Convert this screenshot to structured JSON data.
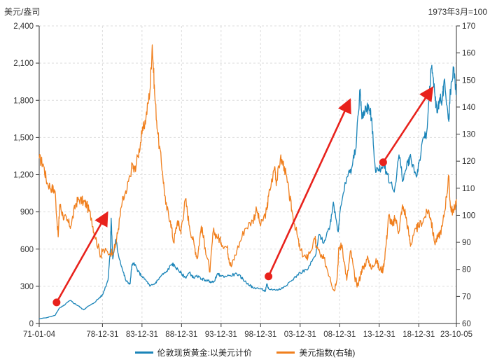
{
  "chart_data": {
    "type": "line",
    "title": "",
    "left_unit": "美元/盎司",
    "right_unit": "1973年3月=100",
    "x_tick_labels": [
      "71-01-04",
      "78-12-31",
      "83-12-31",
      "88-12-31",
      "93-12-31",
      "98-12-31",
      "03-12-31",
      "08-12-31",
      "13-12-31",
      "18-12-31",
      "23-10-05"
    ],
    "x_tick_years": [
      1971.0,
      1979.0,
      1984.0,
      1989.0,
      1994.0,
      1999.0,
      2004.0,
      2009.0,
      2014.0,
      2019.0,
      2023.76
    ],
    "x_range": [
      1971.0,
      2023.76
    ],
    "y_left": {
      "range": [
        0,
        2400
      ],
      "ticks": [
        "0",
        "300",
        "600",
        "900",
        "1,200",
        "1,500",
        "1,800",
        "2,100",
        "2,400"
      ],
      "tick_values": [
        0,
        300,
        600,
        900,
        1200,
        1500,
        1800,
        2100,
        2400
      ]
    },
    "y_right": {
      "range": [
        60,
        170
      ],
      "ticks": [
        "60",
        "70",
        "80",
        "90",
        "100",
        "110",
        "120",
        "130",
        "140",
        "150",
        "160",
        "170"
      ],
      "tick_values": [
        60,
        70,
        80,
        90,
        100,
        110,
        120,
        130,
        140,
        150,
        160,
        170
      ]
    },
    "series": [
      {
        "name": "伦敦现货黄金:以美元计价",
        "axis": "left",
        "color": "#1a84b8",
        "points": [
          [
            1971.0,
            38
          ],
          [
            1972.0,
            48
          ],
          [
            1973.0,
            65
          ],
          [
            1973.5,
            120
          ],
          [
            1974.0,
            140
          ],
          [
            1974.9,
            185
          ],
          [
            1975.5,
            160
          ],
          [
            1976.0,
            140
          ],
          [
            1976.6,
            110
          ],
          [
            1977.0,
            130
          ],
          [
            1977.8,
            160
          ],
          [
            1978.5,
            200
          ],
          [
            1979.0,
            230
          ],
          [
            1979.7,
            350
          ],
          [
            1980.0,
            600
          ],
          [
            1980.1,
            850
          ],
          [
            1980.3,
            520
          ],
          [
            1980.7,
            680
          ],
          [
            1981.0,
            560
          ],
          [
            1981.6,
            420
          ],
          [
            1982.0,
            340
          ],
          [
            1982.5,
            320
          ],
          [
            1982.7,
            460
          ],
          [
            1983.0,
            490
          ],
          [
            1983.5,
            420
          ],
          [
            1984.0,
            380
          ],
          [
            1984.6,
            340
          ],
          [
            1985.0,
            300
          ],
          [
            1985.6,
            320
          ],
          [
            1986.0,
            350
          ],
          [
            1986.5,
            390
          ],
          [
            1987.0,
            410
          ],
          [
            1987.8,
            480
          ],
          [
            1988.0,
            470
          ],
          [
            1988.6,
            430
          ],
          [
            1989.0,
            400
          ],
          [
            1989.5,
            370
          ],
          [
            1990.0,
            410
          ],
          [
            1990.5,
            370
          ],
          [
            1991.0,
            380
          ],
          [
            1991.6,
            360
          ],
          [
            1992.0,
            350
          ],
          [
            1992.6,
            340
          ],
          [
            1993.0,
            330
          ],
          [
            1993.6,
            400
          ],
          [
            1994.0,
            380
          ],
          [
            1995.0,
            385
          ],
          [
            1996.0,
            400
          ],
          [
            1996.6,
            370
          ],
          [
            1997.0,
            340
          ],
          [
            1997.8,
            300
          ],
          [
            1998.0,
            290
          ],
          [
            1999.0,
            280
          ],
          [
            1999.6,
            260
          ],
          [
            1999.8,
            320
          ],
          [
            2000.0,
            280
          ],
          [
            2001.0,
            270
          ],
          [
            2001.6,
            280
          ],
          [
            2002.0,
            300
          ],
          [
            2003.0,
            350
          ],
          [
            2004.0,
            410
          ],
          [
            2005.0,
            440
          ],
          [
            2006.0,
            560
          ],
          [
            2006.4,
            720
          ],
          [
            2007.0,
            650
          ],
          [
            2007.8,
            800
          ],
          [
            2008.2,
            980
          ],
          [
            2008.8,
            740
          ],
          [
            2009.0,
            880
          ],
          [
            2009.9,
            1180
          ],
          [
            2010.5,
            1250
          ],
          [
            2011.0,
            1400
          ],
          [
            2011.6,
            1890
          ],
          [
            2011.8,
            1650
          ],
          [
            2012.3,
            1750
          ],
          [
            2012.8,
            1720
          ],
          [
            2013.0,
            1660
          ],
          [
            2013.5,
            1250
          ],
          [
            2014.0,
            1230
          ],
          [
            2014.6,
            1300
          ],
          [
            2015.0,
            1200
          ],
          [
            2015.9,
            1060
          ],
          [
            2016.5,
            1360
          ],
          [
            2017.0,
            1150
          ],
          [
            2017.6,
            1300
          ],
          [
            2018.0,
            1340
          ],
          [
            2018.7,
            1180
          ],
          [
            2019.0,
            1290
          ],
          [
            2019.7,
            1510
          ],
          [
            2020.0,
            1540
          ],
          [
            2020.6,
            2060
          ],
          [
            2021.0,
            1870
          ],
          [
            2021.3,
            1700
          ],
          [
            2021.6,
            1800
          ],
          [
            2022.0,
            1820
          ],
          [
            2022.2,
            1960
          ],
          [
            2022.8,
            1630
          ],
          [
            2023.0,
            1870
          ],
          [
            2023.4,
            2050
          ],
          [
            2023.76,
            1850
          ]
        ]
      },
      {
        "name": "美元指数(右轴)",
        "axis": "right",
        "color": "#f07f1d",
        "points": [
          [
            1971.0,
            121
          ],
          [
            1971.5,
            119
          ],
          [
            1972.0,
            112
          ],
          [
            1972.6,
            110
          ],
          [
            1973.0,
            109
          ],
          [
            1973.4,
            92
          ],
          [
            1973.6,
            104
          ],
          [
            1974.0,
            100
          ],
          [
            1974.5,
            98
          ],
          [
            1975.0,
            96
          ],
          [
            1975.6,
            104
          ],
          [
            1976.0,
            106
          ],
          [
            1976.6,
            105
          ],
          [
            1977.0,
            104
          ],
          [
            1977.6,
            99
          ],
          [
            1978.0,
            93
          ],
          [
            1978.8,
            85
          ],
          [
            1979.0,
            87
          ],
          [
            1980.0,
            86
          ],
          [
            1980.6,
            88
          ],
          [
            1981.0,
            95
          ],
          [
            1981.5,
            105
          ],
          [
            1982.0,
            108
          ],
          [
            1982.8,
            119
          ],
          [
            1983.0,
            116
          ],
          [
            1983.5,
            122
          ],
          [
            1984.0,
            130
          ],
          [
            1984.5,
            136
          ],
          [
            1985.0,
            146
          ],
          [
            1985.3,
            163
          ],
          [
            1985.6,
            145
          ],
          [
            1986.0,
            130
          ],
          [
            1986.6,
            116
          ],
          [
            1987.0,
            104
          ],
          [
            1987.6,
            98
          ],
          [
            1988.0,
            90
          ],
          [
            1988.5,
            98
          ],
          [
            1988.9,
            94
          ],
          [
            1989.0,
            96
          ],
          [
            1989.5,
            106
          ],
          [
            1990.0,
            96
          ],
          [
            1990.6,
            89
          ],
          [
            1991.0,
            84
          ],
          [
            1991.5,
            96
          ],
          [
            1992.0,
            88
          ],
          [
            1992.6,
            79
          ],
          [
            1993.0,
            94
          ],
          [
            1993.6,
            92
          ],
          [
            1994.0,
            90
          ],
          [
            1994.8,
            88
          ],
          [
            1995.0,
            84
          ],
          [
            1995.3,
            81
          ],
          [
            1996.0,
            87
          ],
          [
            1997.0,
            95
          ],
          [
            1998.0,
            98
          ],
          [
            1998.5,
            102
          ],
          [
            1999.0,
            96
          ],
          [
            1999.8,
            102
          ],
          [
            2000.0,
            107
          ],
          [
            2000.8,
            118
          ],
          [
            2001.0,
            112
          ],
          [
            2001.5,
            121
          ],
          [
            2002.0,
            118
          ],
          [
            2002.6,
            108
          ],
          [
            2003.0,
            101
          ],
          [
            2003.6,
            93
          ],
          [
            2004.0,
            87
          ],
          [
            2004.8,
            84
          ],
          [
            2005.0,
            85
          ],
          [
            2005.9,
            91
          ],
          [
            2006.0,
            89
          ],
          [
            2006.8,
            84
          ],
          [
            2007.0,
            84
          ],
          [
            2007.8,
            77
          ],
          [
            2008.3,
            72
          ],
          [
            2008.7,
            78
          ],
          [
            2008.9,
            88
          ],
          [
            2009.3,
            89
          ],
          [
            2009.9,
            76
          ],
          [
            2010.4,
            87
          ],
          [
            2010.9,
            77
          ],
          [
            2011.3,
            74
          ],
          [
            2011.8,
            80
          ],
          [
            2012.0,
            81
          ],
          [
            2012.6,
            84
          ],
          [
            2013.0,
            80
          ],
          [
            2013.6,
            84
          ],
          [
            2014.0,
            80
          ],
          [
            2014.5,
            80
          ],
          [
            2014.9,
            90
          ],
          [
            2015.2,
            100
          ],
          [
            2015.7,
            96
          ],
          [
            2016.0,
            99
          ],
          [
            2016.5,
            94
          ],
          [
            2016.9,
            103
          ],
          [
            2017.3,
            101
          ],
          [
            2017.8,
            92
          ],
          [
            2018.0,
            89
          ],
          [
            2018.7,
            95
          ],
          [
            2019.0,
            96
          ],
          [
            2019.7,
            99
          ],
          [
            2020.2,
            102
          ],
          [
            2020.5,
            99
          ],
          [
            2021.0,
            90
          ],
          [
            2021.5,
            92
          ],
          [
            2022.0,
            96
          ],
          [
            2022.5,
            107
          ],
          [
            2022.8,
            114
          ],
          [
            2023.0,
            103
          ],
          [
            2023.4,
            101
          ],
          [
            2023.76,
            106
          ]
        ]
      }
    ],
    "annotations": [
      {
        "type": "arrow",
        "color": "#e8221c",
        "from": [
          1973.2,
          170
        ],
        "to": [
          1979.5,
          880
        ]
      },
      {
        "type": "arrow",
        "color": "#e8221c",
        "from": [
          2000.0,
          380
        ],
        "to": [
          2010.2,
          1790
        ]
      },
      {
        "type": "arrow",
        "color": "#e8221c",
        "from": [
          2014.5,
          1300
        ],
        "to": [
          2020.6,
          1890
        ]
      }
    ]
  }
}
